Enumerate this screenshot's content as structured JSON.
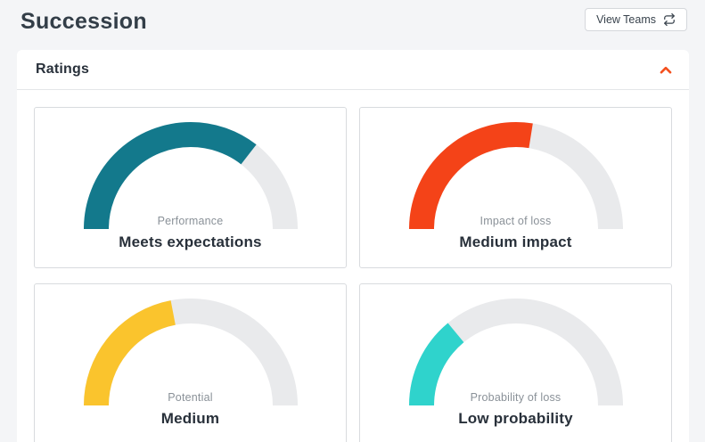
{
  "page": {
    "title": "Succession"
  },
  "header": {
    "view_teams_label": "View Teams",
    "view_teams_icon": "swap-repeat-icon"
  },
  "ratings": {
    "title": "Ratings",
    "collapse_icon": "chevron-up-icon",
    "track_color": "#E9EAEC",
    "gauges": [
      {
        "label": "Performance",
        "value": "Meets expectations",
        "percent": 71,
        "color": "#13798C"
      },
      {
        "label": "Impact of loss",
        "value": "Medium impact",
        "percent": 55,
        "color": "#F44318"
      },
      {
        "label": "Potential",
        "value": "Medium",
        "percent": 44,
        "color": "#FAC42D"
      },
      {
        "label": "Probability of loss",
        "value": "Low probability",
        "percent": 28,
        "color": "#2FD3CC"
      }
    ]
  },
  "colors": {
    "accent": "#F4501E",
    "page_background": "#F4F5F7",
    "card_border": "#D8DBDE",
    "title_text": "#333E48",
    "label_text": "#8A9198",
    "value_text": "#28303A"
  }
}
